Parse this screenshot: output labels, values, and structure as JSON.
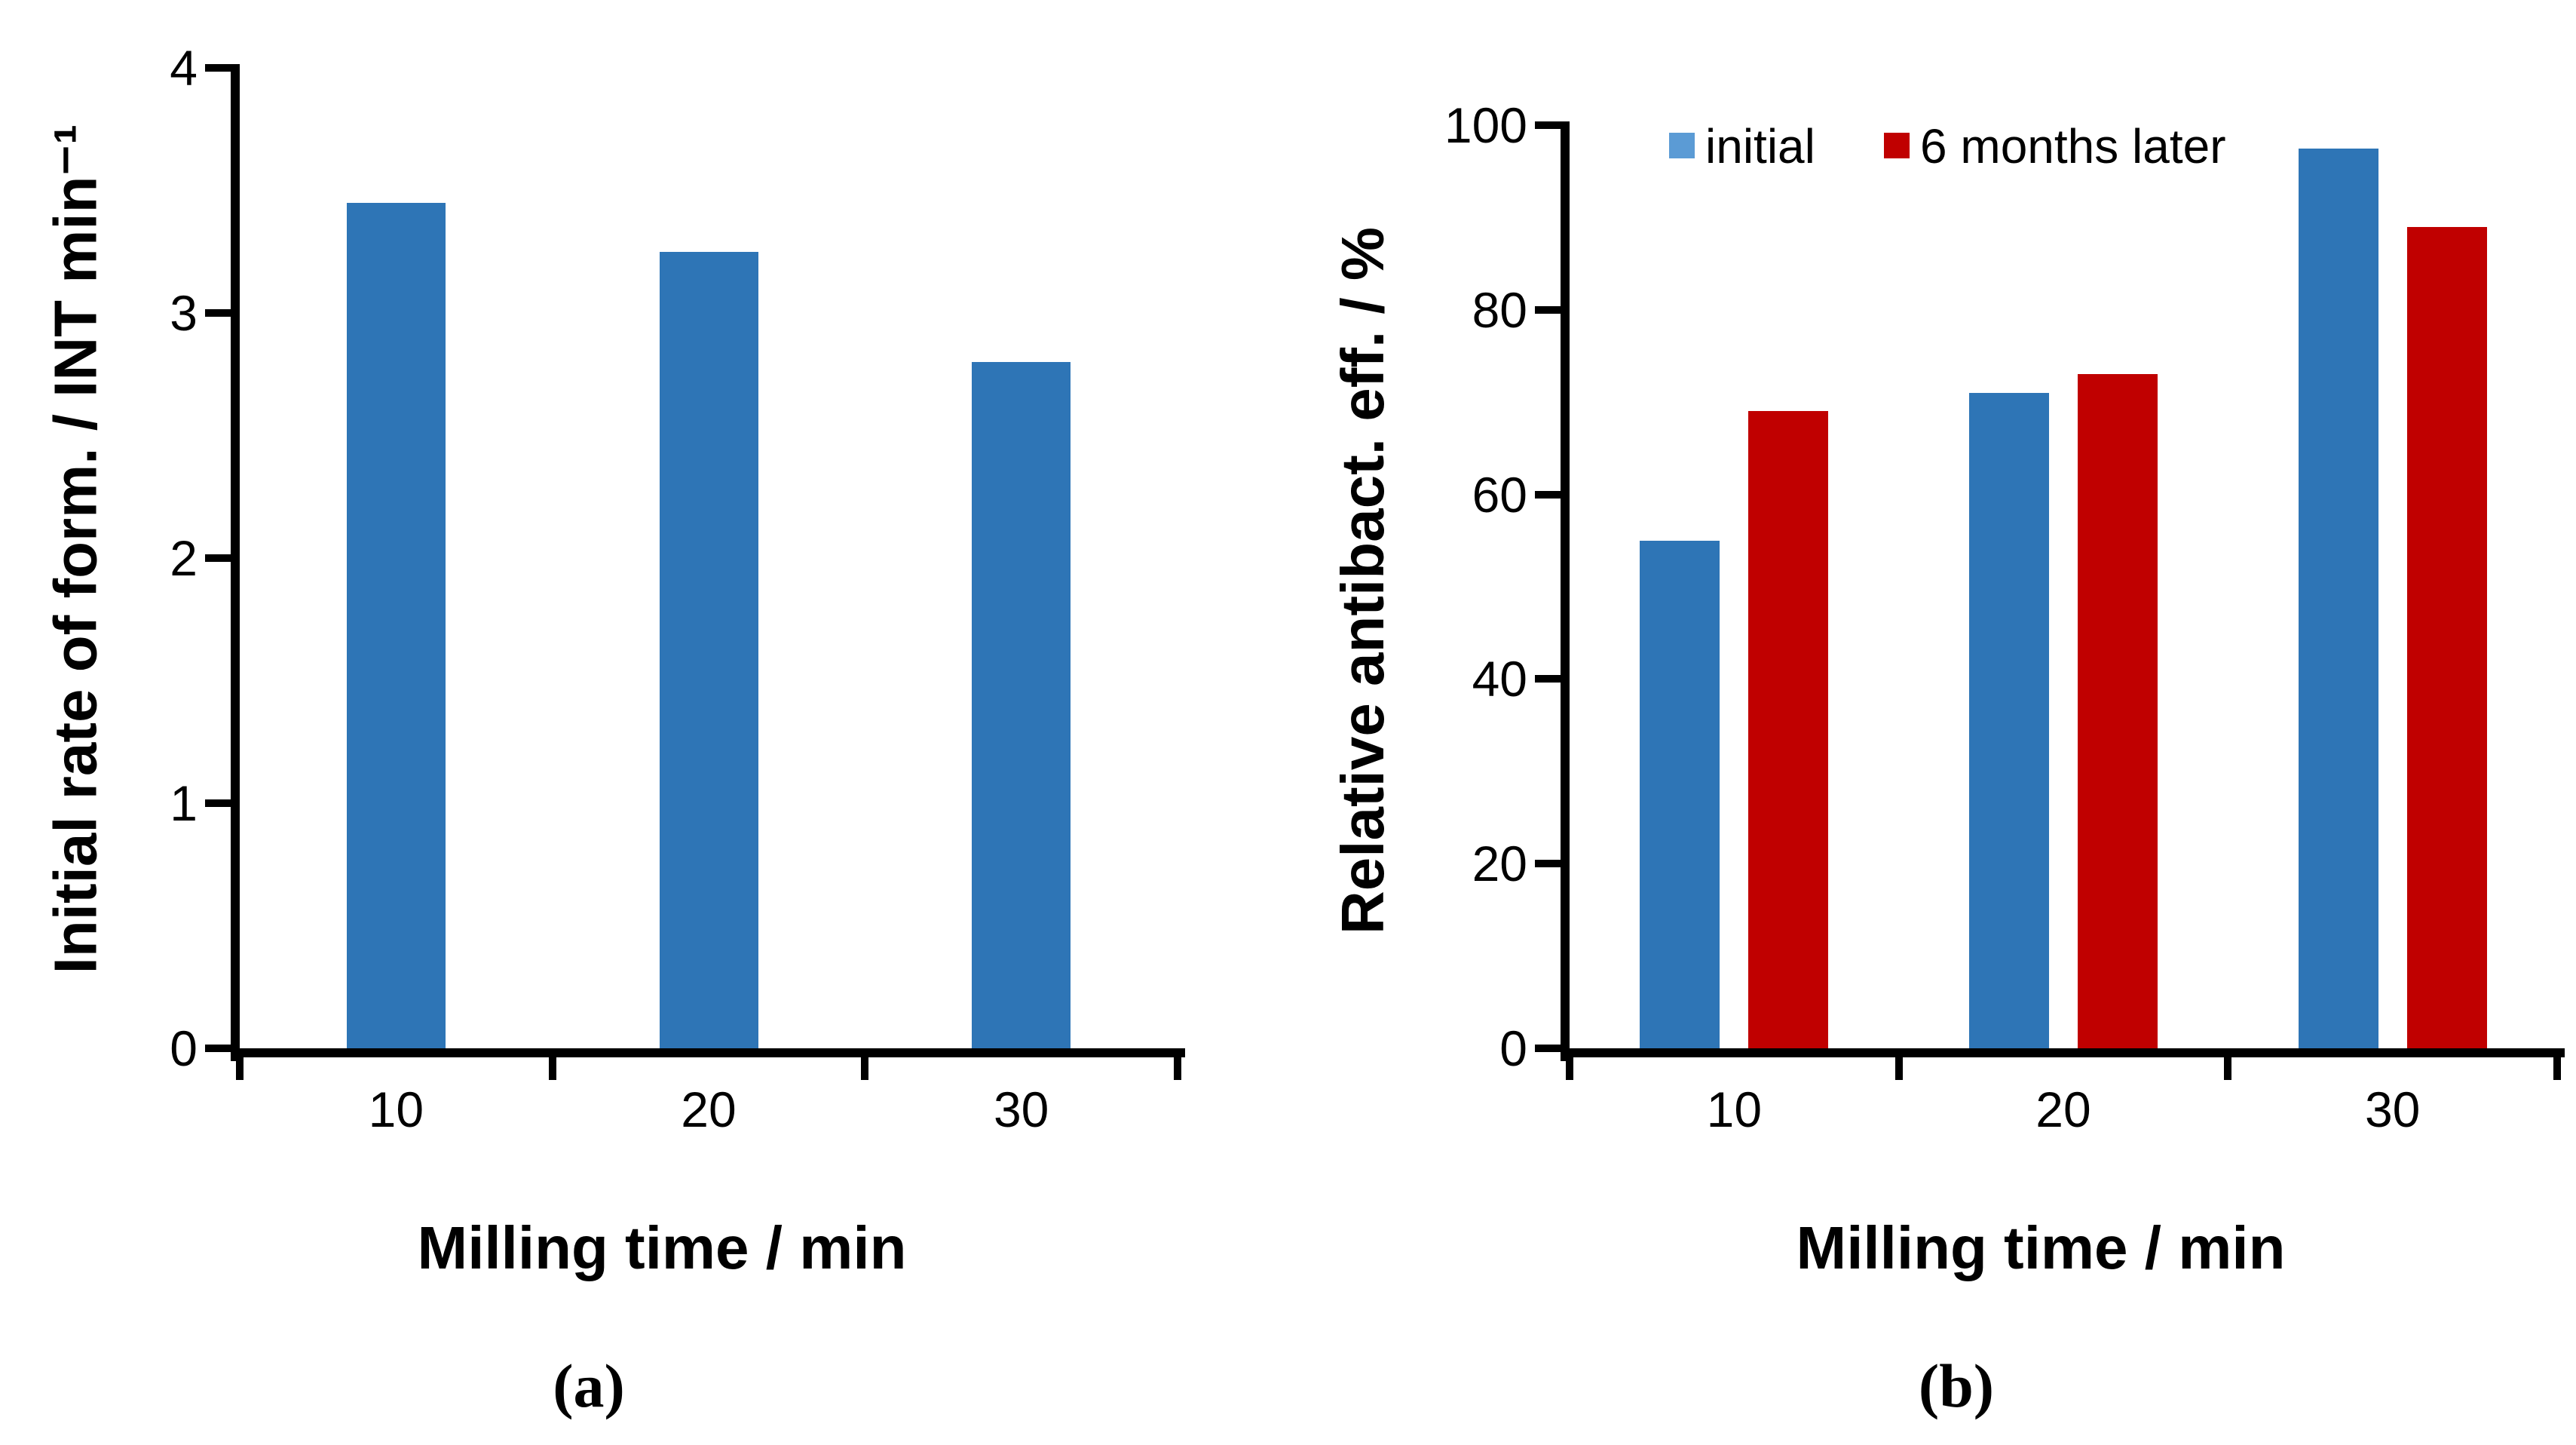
{
  "page": {
    "background": "#ffffff",
    "text_color": "#000000",
    "axis_color": "#000000"
  },
  "legend": {
    "position": "top",
    "entries": [
      {
        "label": "initial",
        "swatch_color": "#5B9BD5"
      },
      {
        "label": "6 months later",
        "swatch_color": "#C00000"
      }
    ]
  },
  "chart_data": [
    {
      "id": "chart-a",
      "type": "bar",
      "title": "",
      "categories": [
        "10",
        "20",
        "30"
      ],
      "series": [
        {
          "name": "",
          "color": "#2E75B6",
          "values": [
            3.45,
            3.25,
            2.8
          ]
        }
      ],
      "xlabel": "Milling time / min",
      "ylabel": "Initial rate of form. / INT min⁻¹",
      "ylim": [
        0,
        4
      ],
      "y_ticks": [
        "0",
        "1",
        "2",
        "3",
        "4"
      ],
      "grid": false,
      "legend": false,
      "caption": "(a)"
    },
    {
      "id": "chart-b",
      "type": "bar",
      "title": "",
      "categories": [
        "10",
        "20",
        "30"
      ],
      "series": [
        {
          "name": "initial",
          "color": "#2E75B6",
          "swatch_color": "#5B9BD5",
          "values": [
            55,
            71,
            97.5
          ]
        },
        {
          "name": "6 months later",
          "color": "#C00000",
          "swatch_color": "#C00000",
          "values": [
            69,
            73,
            89
          ]
        }
      ],
      "xlabel": "Milling time / min",
      "ylabel": "Relative antibact. eff. / %",
      "ylim": [
        0,
        100
      ],
      "y_ticks": [
        "0",
        "20",
        "40",
        "60",
        "80",
        "100"
      ],
      "grid": false,
      "legend": true,
      "legend_position": "top",
      "caption": "(b)"
    }
  ]
}
